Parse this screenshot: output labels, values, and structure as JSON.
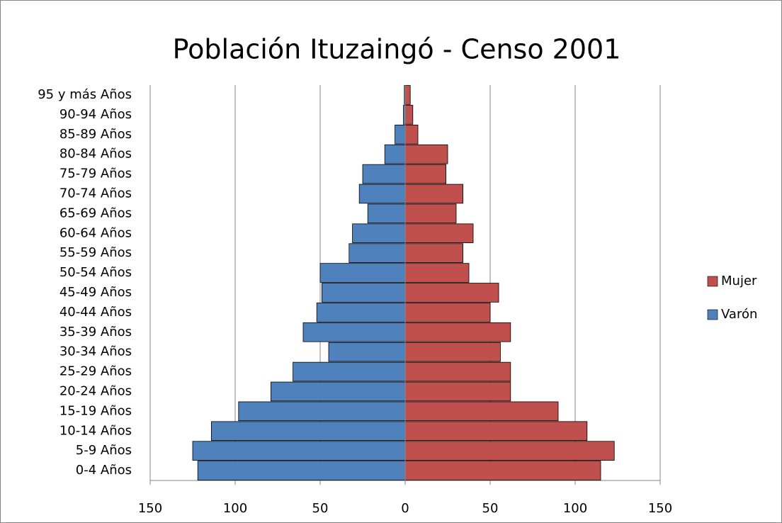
{
  "chart_data": {
    "type": "bar",
    "orientation": "horizontal",
    "stacked": true,
    "title": "Población Ituzaingó -  Censo 2001",
    "categories": [
      "0-4 Años",
      "5-9 Años",
      "10-14 Años",
      "15-19 Años",
      "20-24 Años",
      "25-29 Años",
      "30-34 Años",
      "35-39 Años",
      "40-44 Años",
      "45-49 Años",
      "50-54 Años",
      "55-59 Años",
      "60-64 Años",
      "65-69 Años",
      "70-74 Años",
      "75-79 Años",
      "80-84 Años",
      "85-89 Años",
      "90-94 Años",
      "95 y más Años"
    ],
    "series": [
      {
        "name": "Mujer",
        "color": "#c0504d",
        "values": [
          115,
          123,
          107,
          90,
          62,
          62,
          56,
          62,
          50,
          55,
          37.5,
          34,
          40,
          30,
          34,
          24,
          25,
          7.5,
          4.5,
          3
        ]
      },
      {
        "name": "Varón",
        "color": "#4f81bd",
        "values": [
          -122,
          -125,
          -114,
          -98,
          -79,
          -66,
          -45,
          -60,
          -52,
          -49,
          -50,
          -33,
          -31,
          -22,
          -27,
          -25,
          -12,
          -6,
          -1,
          -0.5
        ]
      }
    ],
    "xlim": [
      -150,
      150
    ],
    "xticks": [
      {
        "value": -150,
        "label": "150"
      },
      {
        "value": -100,
        "label": "100"
      },
      {
        "value": -50,
        "label": "50"
      },
      0,
      50,
      100,
      150
    ],
    "grid": true,
    "legend": "right"
  }
}
